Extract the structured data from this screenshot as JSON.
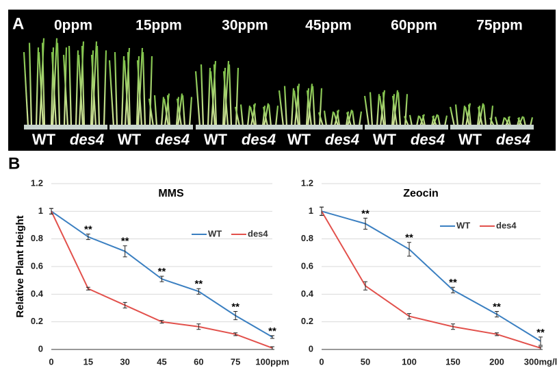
{
  "panel_a": {
    "label": "A",
    "concentrations": [
      "0ppm",
      "15ppm",
      "30ppm",
      "45ppm",
      "60ppm",
      "75ppm"
    ],
    "genotypes": [
      "WT",
      "des4"
    ]
  },
  "panel_b": {
    "label": "B"
  },
  "chart_data": [
    {
      "type": "line",
      "title": "MMS",
      "y_label": "Relative Plant Height",
      "categories": [
        "0",
        "15",
        "30",
        "45",
        "60",
        "75",
        "100ppm"
      ],
      "ylim": [
        0,
        1.2
      ],
      "yticks": [
        0,
        0.2,
        0.4,
        0.6,
        0.8,
        1,
        1.2
      ],
      "grid": true,
      "series": [
        {
          "name": "WT",
          "color": "#3a7fc1",
          "values": [
            1,
            0.815,
            0.71,
            0.51,
            0.42,
            0.245,
            0.09
          ],
          "errors": [
            0.02,
            0.02,
            0.04,
            0.02,
            0.02,
            0.03,
            0.01
          ]
        },
        {
          "name": "des4",
          "color": "#e2504b",
          "values": [
            1,
            0.44,
            0.32,
            0.2,
            0.165,
            0.11,
            0.01
          ],
          "errors": [
            0.02,
            0.01,
            0.02,
            0.01,
            0.02,
            0.01,
            0.01
          ]
        }
      ],
      "significance": [
        null,
        "**",
        "**",
        "**",
        "**",
        "**",
        "**"
      ]
    },
    {
      "type": "line",
      "title": "Zeocin",
      "categories": [
        "0",
        "50",
        "100",
        "150",
        "200",
        "300mg/l"
      ],
      "ylim": [
        0,
        1.2
      ],
      "yticks": [
        0,
        0.2,
        0.4,
        0.6,
        0.8,
        1,
        1.2
      ],
      "grid": true,
      "series": [
        {
          "name": "WT",
          "color": "#3a7fc1",
          "values": [
            1,
            0.91,
            0.725,
            0.43,
            0.255,
            0.06
          ],
          "errors": [
            0.03,
            0.04,
            0.05,
            0.02,
            0.02,
            0.03
          ]
        },
        {
          "name": "des4",
          "color": "#e2504b",
          "values": [
            1,
            0.46,
            0.24,
            0.165,
            0.11,
            0.01
          ],
          "errors": [
            0.03,
            0.03,
            0.02,
            0.02,
            0.01,
            0.01
          ]
        }
      ],
      "significance": [
        null,
        "**",
        "**",
        "**",
        "**",
        "**"
      ]
    }
  ]
}
